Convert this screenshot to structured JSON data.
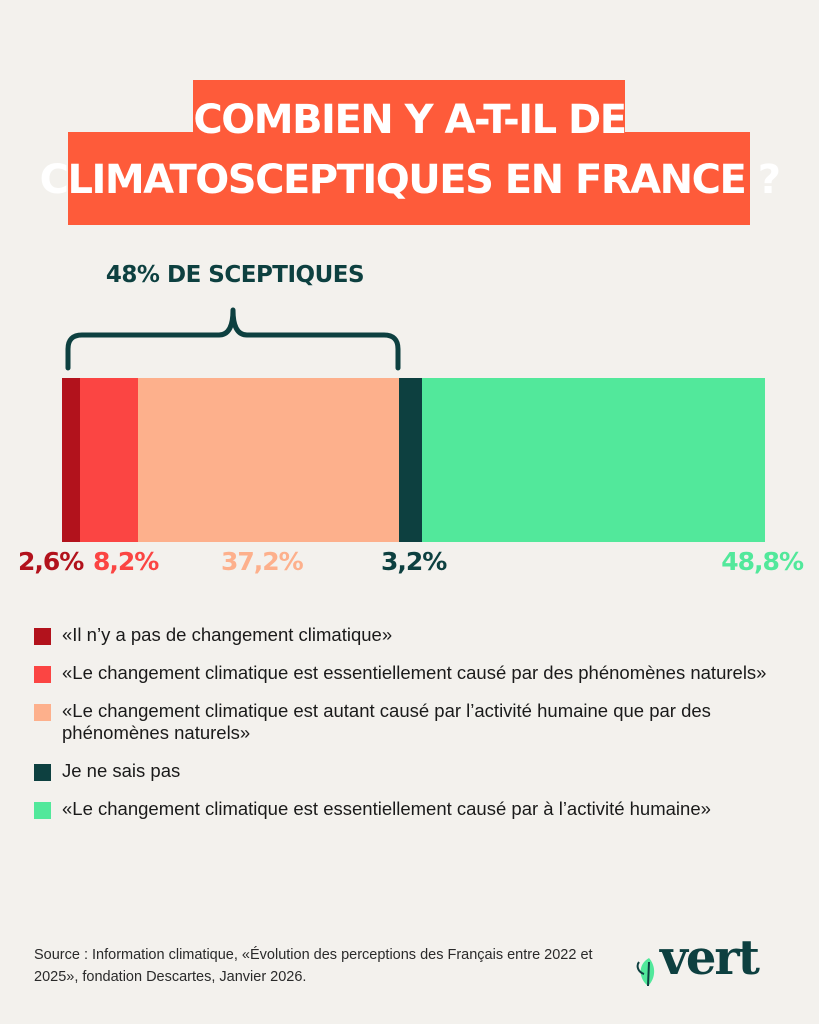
{
  "title": {
    "line1": "COMBIEN Y A-T-IL DE",
    "line2": "CLIMATOSCEPTIQUES EN FRANCE ?"
  },
  "brace_label": "48% DE SCEPTIQUES",
  "chart_data": {
    "type": "bar",
    "orientation": "horizontal-stacked",
    "series": [
      {
        "name": "«Il n’y a pas de changement climatique»",
        "value": 2.6,
        "label": "2,6%",
        "color": "#b2121c"
      },
      {
        "name": "«Le changement climatique est essentiellement causé par des phénomènes naturels»",
        "value": 8.2,
        "label": "8,2%",
        "color": "#fb4543"
      },
      {
        "name": "«Le changement climatique est autant causé par l’activité humaine que par des phénomènes naturels»",
        "value": 37.2,
        "label": "37,2%",
        "color": "#fdb08c"
      },
      {
        "name": "Je ne sais pas",
        "value": 3.2,
        "label": "3,2%",
        "color": "#0d4040"
      },
      {
        "name": "«Le changement climatique est essentiellement causé par à l’activité humaine»",
        "value": 48.8,
        "label": "48,8%",
        "color": "#52e89b"
      }
    ]
  },
  "source": "Source : Information climatique, «Évolution des perceptions des Français entre 2022 et 2025», fondation Descartes, Janvier 2026.",
  "logo": {
    "text": "vert",
    "icon": "leaf-icon"
  }
}
